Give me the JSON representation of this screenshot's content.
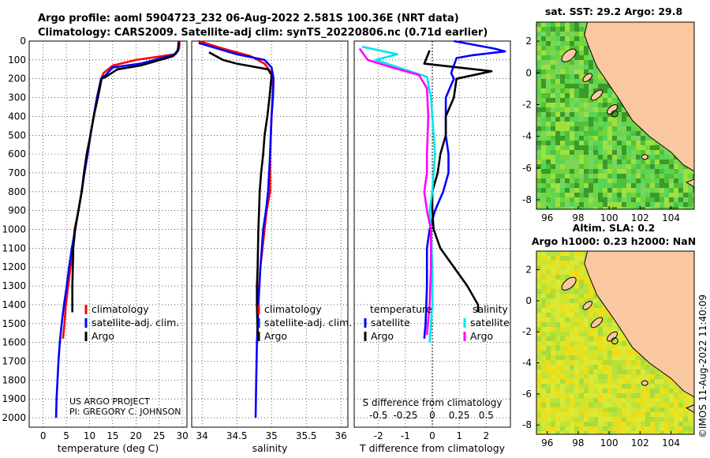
{
  "title_line1": "Argo profile: aoml 5904723_232 06-Aug-2022 2.581S 100.36E (NRT data)",
  "title_line2": "Climatology: CARS2009. Satellite-adj clim: synTS_20220806.nc (0.71d earlier)",
  "credit_line1": "US ARGO PROJECT",
  "credit_line2": "PI: GREGORY C. JOHNSON",
  "watermark": "©IMOS 11-Aug-2022 11:40:09",
  "colors": {
    "climatology": "#ff0000",
    "satellite_clim": "#0000ff",
    "argo": "#000000",
    "sat_diff": "#00e5ee",
    "argo_diff": "#ff00ff",
    "land": "#f9c8a0"
  },
  "depth_ticks": [
    0,
    100,
    200,
    300,
    400,
    500,
    600,
    700,
    800,
    900,
    1000,
    1100,
    1200,
    1300,
    1400,
    1500,
    1600,
    1700,
    1800,
    1900,
    2000
  ],
  "chart_data": [
    {
      "type": "line",
      "xlabel": "temperature (deg C)",
      "ylabel": "",
      "xlim": [
        -3,
        31
      ],
      "ylim": [
        2050,
        0
      ],
      "xticks": [
        0,
        5,
        10,
        15,
        20,
        25,
        30
      ],
      "legend": [
        "climatology",
        "satellite-adj. clim.",
        "Argo"
      ],
      "series": [
        {
          "name": "climatology",
          "color": "#ff0000",
          "points": [
            [
              29.4,
              0
            ],
            [
              29.3,
              40
            ],
            [
              28.5,
              70
            ],
            [
              20,
              100
            ],
            [
              15,
              130
            ],
            [
              13,
              170
            ],
            [
              12.5,
              200
            ],
            [
              11.6,
              300
            ],
            [
              10.9,
              400
            ],
            [
              10.2,
              500
            ],
            [
              9.6,
              600
            ],
            [
              8.9,
              700
            ],
            [
              8.3,
              800
            ],
            [
              7.6,
              900
            ],
            [
              6.8,
              1000
            ],
            [
              6.4,
              1100
            ],
            [
              5.9,
              1200
            ],
            [
              5.4,
              1300
            ],
            [
              4.9,
              1400
            ],
            [
              4.6,
              1500
            ],
            [
              4.3,
              1580
            ]
          ]
        },
        {
          "name": "satellite-adj. clim.",
          "color": "#0000ff",
          "points": [
            [
              29.2,
              0
            ],
            [
              29.1,
              50
            ],
            [
              28.5,
              70
            ],
            [
              21,
              120
            ],
            [
              15,
              140
            ],
            [
              13.5,
              180
            ],
            [
              12.5,
              200
            ],
            [
              11.6,
              300
            ],
            [
              10.9,
              400
            ],
            [
              10.2,
              500
            ],
            [
              9.6,
              600
            ],
            [
              8.9,
              700
            ],
            [
              8.3,
              800
            ],
            [
              7.6,
              900
            ],
            [
              6.9,
              1000
            ],
            [
              6.2,
              1100
            ],
            [
              5.6,
              1200
            ],
            [
              5.1,
              1300
            ],
            [
              4.5,
              1400
            ],
            [
              4,
              1500
            ],
            [
              3.6,
              1600
            ],
            [
              3.3,
              1700
            ],
            [
              3.1,
              1800
            ],
            [
              2.9,
              1900
            ],
            [
              2.8,
              2000
            ]
          ]
        },
        {
          "name": "Argo",
          "color": "#000000",
          "points": [
            [
              29.3,
              10
            ],
            [
              29,
              50
            ],
            [
              28,
              80
            ],
            [
              21,
              130
            ],
            [
              16,
              150
            ],
            [
              13.5,
              190
            ],
            [
              12.6,
              200
            ],
            [
              11.8,
              300
            ],
            [
              10.9,
              400
            ],
            [
              10.2,
              500
            ],
            [
              9.4,
              600
            ],
            [
              8.8,
              700
            ],
            [
              8.3,
              800
            ],
            [
              7.6,
              900
            ],
            [
              6.9,
              1000
            ],
            [
              6.5,
              1100
            ],
            [
              6.4,
              1200
            ],
            [
              6.3,
              1300
            ],
            [
              6.3,
              1440
            ]
          ]
        }
      ]
    },
    {
      "type": "line",
      "xlabel": "salinity",
      "ylabel": "",
      "xlim": [
        33.85,
        36.1
      ],
      "ylim": [
        2050,
        0
      ],
      "xticks": [
        34,
        34.5,
        35,
        35.5,
        36
      ],
      "legend": [
        "climatology",
        "satellite-adj. clim.",
        "Argo"
      ],
      "series": [
        {
          "name": "climatology",
          "color": "#ff0000",
          "points": [
            [
              33.95,
              0
            ],
            [
              34.3,
              40
            ],
            [
              34.7,
              80
            ],
            [
              34.9,
              120
            ],
            [
              35.0,
              170
            ],
            [
              35.02,
              250
            ],
            [
              35.0,
              400
            ],
            [
              34.98,
              600
            ],
            [
              34.98,
              800
            ],
            [
              34.93,
              900
            ],
            [
              34.9,
              1000
            ],
            [
              34.87,
              1100
            ],
            [
              34.84,
              1200
            ],
            [
              34.82,
              1300
            ],
            [
              34.8,
              1400
            ],
            [
              34.8,
              1550
            ]
          ]
        },
        {
          "name": "satellite-adj. clim.",
          "color": "#0000ff",
          "points": [
            [
              33.95,
              10
            ],
            [
              34.5,
              70
            ],
            [
              34.9,
              100
            ],
            [
              35.0,
              140
            ],
            [
              35.03,
              200
            ],
            [
              35.02,
              300
            ],
            [
              35.0,
              400
            ],
            [
              34.98,
              600
            ],
            [
              34.95,
              800
            ],
            [
              34.92,
              900
            ],
            [
              34.88,
              1000
            ],
            [
              34.84,
              1200
            ],
            [
              34.81,
              1400
            ],
            [
              34.79,
              1600
            ],
            [
              34.78,
              1800
            ],
            [
              34.77,
              2000
            ]
          ]
        },
        {
          "name": "Argo",
          "color": "#000000",
          "points": [
            [
              34.1,
              60
            ],
            [
              34.3,
              100
            ],
            [
              34.5,
              120
            ],
            [
              34.95,
              150
            ],
            [
              35.0,
              180
            ],
            [
              34.97,
              300
            ],
            [
              34.94,
              400
            ],
            [
              34.9,
              500
            ],
            [
              34.88,
              600
            ],
            [
              34.85,
              700
            ],
            [
              34.83,
              800
            ],
            [
              34.82,
              900
            ],
            [
              34.81,
              1000
            ],
            [
              34.8,
              1200
            ],
            [
              34.79,
              1300
            ],
            [
              34.79,
              1400
            ],
            [
              34.8,
              1560
            ]
          ]
        }
      ]
    },
    {
      "type": "line",
      "xlabel": "T difference from climatology",
      "ylabel": "",
      "xlim": [
        -2.9,
        2.9
      ],
      "ylim": [
        2050,
        0
      ],
      "xticks": [
        -2,
        -1,
        0,
        1,
        2
      ],
      "top_axis_label": "S difference from climatology",
      "top_ticks": [
        "-0.5",
        "-0.25",
        "0",
        "0.25",
        "0.5"
      ],
      "legend_headers": [
        "temperature",
        "salinity"
      ],
      "legend": [
        "satellite",
        "Argo",
        "satellite",
        "Argo"
      ],
      "series": [
        {
          "name": "satellite",
          "quantity": "temperature",
          "color": "#0000ff",
          "points": [
            [
              0.8,
              0
            ],
            [
              2.3,
              40
            ],
            [
              2.7,
              55
            ],
            [
              1.5,
              75
            ],
            [
              0.9,
              90
            ],
            [
              0.7,
              170
            ],
            [
              0.8,
              200
            ],
            [
              0.5,
              300
            ],
            [
              0.5,
              500
            ],
            [
              0.6,
              600
            ],
            [
              0.6,
              700
            ],
            [
              0.4,
              800
            ],
            [
              0.1,
              900
            ],
            [
              -0.1,
              1000
            ],
            [
              -0.2,
              1100
            ],
            [
              -0.2,
              1300
            ],
            [
              -0.25,
              1500
            ],
            [
              -0.3,
              1580
            ]
          ]
        },
        {
          "name": "Argo",
          "quantity": "temperature",
          "color": "#000000",
          "points": [
            [
              -0.1,
              50
            ],
            [
              -0.3,
              120
            ],
            [
              2.2,
              160
            ],
            [
              0.9,
              200
            ],
            [
              0.8,
              300
            ],
            [
              0.5,
              400
            ],
            [
              0.5,
              500
            ],
            [
              0.3,
              600
            ],
            [
              0.2,
              700
            ],
            [
              0,
              800
            ],
            [
              0,
              900
            ],
            [
              0.05,
              1000
            ],
            [
              0.3,
              1100
            ],
            [
              0.8,
              1200
            ],
            [
              1.3,
              1300
            ],
            [
              1.7,
              1400
            ],
            [
              1.7,
              1440
            ]
          ]
        },
        {
          "name": "satellite",
          "quantity": "salinity",
          "color": "#00e5ee",
          "points": [
            [
              -2.6,
              30
            ],
            [
              -1.3,
              70
            ],
            [
              -2.1,
              100
            ],
            [
              -0.2,
              190
            ],
            [
              -0.05,
              300
            ],
            [
              0.1,
              600
            ],
            [
              0,
              800
            ],
            [
              -0.1,
              900
            ],
            [
              -0.05,
              1000
            ],
            [
              0,
              1200
            ],
            [
              0,
              1400
            ],
            [
              -0.1,
              1600
            ]
          ]
        },
        {
          "name": "Argo",
          "quantity": "salinity",
          "color": "#ff00ff",
          "points": [
            [
              -2.7,
              40
            ],
            [
              -2.4,
              100
            ],
            [
              -1.5,
              140
            ],
            [
              -0.5,
              180
            ],
            [
              -0.2,
              250
            ],
            [
              -0.15,
              400
            ],
            [
              -0.2,
              600
            ],
            [
              -0.2,
              700
            ],
            [
              -0.3,
              800
            ],
            [
              -0.2,
              900
            ],
            [
              -0.05,
              1000
            ],
            [
              -0.05,
              1200
            ],
            [
              -0.1,
              1400
            ],
            [
              -0.2,
              1560
            ]
          ]
        }
      ]
    },
    {
      "type": "heatmap",
      "title": "sat. SST: 29.2 Argo: 29.8",
      "xlim": [
        95.3,
        105.5
      ],
      "ylim": [
        -8.6,
        3.2
      ],
      "xticks": [
        96,
        98,
        100,
        102,
        104
      ],
      "yticks": [
        2,
        0,
        -2,
        -4,
        -6,
        -8
      ],
      "palette": [
        "#3a9a2a",
        "#4fc03a",
        "#55d65a",
        "#7ad65a",
        "#9ee03e",
        "#6fd640"
      ]
    },
    {
      "type": "heatmap",
      "title_line1": "Altim. SLA: 0.2",
      "title_line2": "Argo h1000: 0.23 h2000: NaN",
      "xlim": [
        95.3,
        105.5
      ],
      "ylim": [
        -8.6,
        3.2
      ],
      "xticks": [
        96,
        98,
        100,
        102,
        104
      ],
      "yticks": [
        2,
        0,
        -2,
        -4,
        -6,
        -8
      ],
      "palette": [
        "#b8e23c",
        "#c8e632",
        "#d6e93a",
        "#e0e830",
        "#e8e020",
        "#f0dc14",
        "#a7dc3c"
      ]
    }
  ]
}
